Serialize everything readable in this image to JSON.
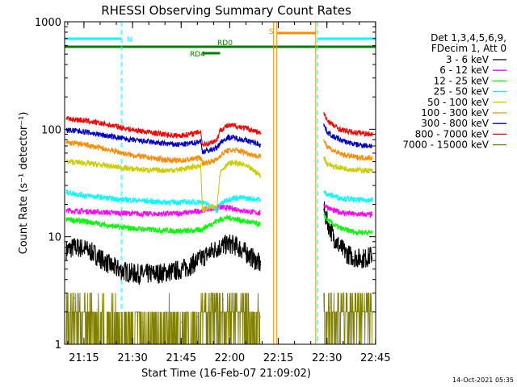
{
  "chart_data": {
    "type": "line",
    "title": "RHESSI Observing Summary Count Rates",
    "xlabel": "Start Time (16-Feb-07 21:09:02)",
    "ylabel": "Count Rate (s⁻¹ detector⁻¹)",
    "yscale": "log",
    "ylim": [
      1,
      1000
    ],
    "xlim_minutes": [
      0,
      96
    ],
    "x_ticks": [
      "21:15",
      "21:30",
      "21:45",
      "22:00",
      "22:15",
      "22:30",
      "22:45"
    ],
    "y_ticks": [
      "1",
      "10",
      "100",
      "1000"
    ],
    "grid": false,
    "legend_position": "right",
    "legend_header": [
      "Det 1,3,4,5,6,9,",
      "FDecim 1, Att 0"
    ],
    "timestamp": "14-Oct-2021 05:35",
    "data_gaps": [
      [
        60.5,
        63
      ],
      [
        75.5,
        80
      ]
    ],
    "flag_bars": [
      {
        "label": "N",
        "color": "#00ffff",
        "row": 1,
        "segments": [
          [
            0,
            17.5
          ],
          [
            78,
            96
          ]
        ]
      },
      {
        "label": "S",
        "color": "#ff8c00",
        "row": 0,
        "segments": [
          [
            65.5,
            77.5
          ]
        ]
      },
      {
        "label": "RD0",
        "color": "#008000",
        "row": 2,
        "segments": [
          [
            0,
            96
          ]
        ]
      },
      {
        "label": "RD4",
        "color": "#008000",
        "row": 3,
        "segments": [
          [
            42.5,
            48
          ]
        ]
      }
    ],
    "vertical_markers": [
      {
        "color": "#00ffff",
        "style": "dashed",
        "x": [
          0,
          17.5,
          78,
          96
        ]
      },
      {
        "color": "#ff8c00",
        "style": "solid",
        "x": [
          64.5,
          65.5,
          77.5
        ]
      }
    ],
    "series": [
      {
        "name": "3 - 6 keV",
        "color": "#000000",
        "points": [
          [
            0.5,
            7.5
          ],
          [
            3,
            8
          ],
          [
            6,
            7.8
          ],
          [
            9,
            7
          ],
          [
            12,
            6
          ],
          [
            15,
            5.2
          ],
          [
            18,
            4.8
          ],
          [
            22,
            4.5
          ],
          [
            26,
            4.5
          ],
          [
            30,
            4.6
          ],
          [
            34,
            4.8
          ],
          [
            38,
            5.2
          ],
          [
            41,
            6
          ],
          [
            43,
            6.5
          ],
          [
            45,
            7.2
          ],
          [
            47,
            7.8
          ],
          [
            49,
            8.3
          ],
          [
            51,
            8.6
          ],
          [
            53,
            8.2
          ],
          [
            55,
            7.5
          ],
          [
            57,
            6.7
          ],
          [
            59,
            6
          ],
          [
            60.5,
            5.5
          ],
          [
            80,
            18
          ],
          [
            81,
            14
          ],
          [
            83,
            10
          ],
          [
            85,
            8
          ],
          [
            87,
            7
          ],
          [
            89,
            6.5
          ],
          [
            91,
            6.3
          ],
          [
            93,
            6.3
          ],
          [
            95,
            6.8
          ]
        ]
      },
      {
        "name": "6 - 12 keV",
        "color": "#ff00ff",
        "points": [
          [
            0.5,
            17.5
          ],
          [
            5,
            17.3
          ],
          [
            10,
            17
          ],
          [
            15,
            16.7
          ],
          [
            20,
            16.5
          ],
          [
            25,
            16.3
          ],
          [
            30,
            16.3
          ],
          [
            35,
            16.5
          ],
          [
            40,
            17
          ],
          [
            42,
            17.5
          ],
          [
            44,
            18
          ],
          [
            46,
            18.5
          ],
          [
            48,
            18.8
          ],
          [
            50,
            18.6
          ],
          [
            52,
            18.3
          ],
          [
            55,
            17.5
          ],
          [
            58,
            17
          ],
          [
            60.5,
            16.5
          ],
          [
            80,
            20
          ],
          [
            81,
            19
          ],
          [
            83,
            17.5
          ],
          [
            85,
            17
          ],
          [
            87,
            16.5
          ],
          [
            90,
            16.2
          ],
          [
            95,
            16
          ]
        ]
      },
      {
        "name": "12 - 25 keV",
        "color": "#00ff00",
        "points": [
          [
            0.5,
            14.5
          ],
          [
            5,
            14
          ],
          [
            10,
            13.3
          ],
          [
            15,
            12.5
          ],
          [
            20,
            12
          ],
          [
            25,
            11.7
          ],
          [
            30,
            11.5
          ],
          [
            35,
            11.3
          ],
          [
            40,
            11.4
          ],
          [
            42,
            11.6
          ],
          [
            44,
            12.5
          ],
          [
            46,
            13.5
          ],
          [
            48,
            14.5
          ],
          [
            50,
            15
          ],
          [
            52,
            14.8
          ],
          [
            55,
            14
          ],
          [
            58,
            13.5
          ],
          [
            60.5,
            13
          ],
          [
            80,
            16
          ],
          [
            81,
            14.5
          ],
          [
            83,
            13
          ],
          [
            85,
            12
          ],
          [
            87,
            11.5
          ],
          [
            90,
            11
          ],
          [
            95,
            11
          ]
        ]
      },
      {
        "name": "25 - 50 keV",
        "color": "#00ffff",
        "points": [
          [
            0.5,
            26
          ],
          [
            5,
            24.5
          ],
          [
            10,
            23.5
          ],
          [
            15,
            22.5
          ],
          [
            20,
            22
          ],
          [
            25,
            21.5
          ],
          [
            30,
            21
          ],
          [
            35,
            21
          ],
          [
            40,
            21
          ],
          [
            42,
            21.2
          ],
          [
            44,
            20
          ],
          [
            46,
            19
          ],
          [
            47,
            17
          ],
          [
            48,
            20
          ],
          [
            50,
            22
          ],
          [
            52,
            23
          ],
          [
            55,
            23
          ],
          [
            58,
            22.5
          ],
          [
            60.5,
            22
          ],
          [
            80,
            26
          ],
          [
            81,
            25
          ],
          [
            83,
            24
          ],
          [
            85,
            23
          ],
          [
            87,
            22.5
          ],
          [
            90,
            22
          ],
          [
            95,
            22
          ]
        ]
      },
      {
        "name": "50 - 100 keV",
        "color": "#cccc00",
        "points": [
          [
            0.5,
            50
          ],
          [
            5,
            49
          ],
          [
            10,
            47
          ],
          [
            15,
            45
          ],
          [
            20,
            43
          ],
          [
            25,
            42
          ],
          [
            30,
            41.5
          ],
          [
            35,
            42
          ],
          [
            38,
            43.5
          ],
          [
            41,
            45.5
          ],
          [
            42,
            46
          ],
          [
            42.5,
            18
          ],
          [
            45,
            18.5
          ],
          [
            47,
            19
          ],
          [
            48,
            40
          ],
          [
            50,
            47
          ],
          [
            52,
            49
          ],
          [
            55,
            47
          ],
          [
            58,
            42
          ],
          [
            60.5,
            37
          ],
          [
            80,
            55
          ],
          [
            81,
            48
          ],
          [
            83,
            45
          ],
          [
            85,
            44
          ],
          [
            87,
            43
          ],
          [
            90,
            42
          ],
          [
            95,
            41
          ]
        ]
      },
      {
        "name": "100 - 300 keV",
        "color": "#ff8c00",
        "points": [
          [
            0.5,
            75
          ],
          [
            5,
            73
          ],
          [
            10,
            68
          ],
          [
            15,
            63
          ],
          [
            20,
            58
          ],
          [
            25,
            55
          ],
          [
            30,
            52.5
          ],
          [
            35,
            51
          ],
          [
            38,
            52
          ],
          [
            41,
            54
          ],
          [
            42,
            55
          ],
          [
            42.5,
            48
          ],
          [
            45,
            50
          ],
          [
            47,
            52
          ],
          [
            48,
            57
          ],
          [
            50,
            63
          ],
          [
            52,
            64
          ],
          [
            55,
            62
          ],
          [
            58,
            58
          ],
          [
            60.5,
            55
          ],
          [
            80,
            80
          ],
          [
            81,
            70
          ],
          [
            83,
            63
          ],
          [
            85,
            59
          ],
          [
            87,
            57
          ],
          [
            90,
            55
          ],
          [
            95,
            54
          ]
        ]
      },
      {
        "name": "300 - 800 keV",
        "color": "#0000cc",
        "points": [
          [
            0.5,
            98
          ],
          [
            5,
            96
          ],
          [
            10,
            90
          ],
          [
            15,
            85
          ],
          [
            20,
            80
          ],
          [
            25,
            77
          ],
          [
            30,
            74
          ],
          [
            35,
            72
          ],
          [
            38,
            73
          ],
          [
            41,
            76
          ],
          [
            42,
            78
          ],
          [
            42.5,
            62
          ],
          [
            45,
            64
          ],
          [
            47,
            67
          ],
          [
            48,
            75
          ],
          [
            50,
            83
          ],
          [
            52,
            84
          ],
          [
            55,
            80
          ],
          [
            58,
            76
          ],
          [
            60.5,
            72
          ],
          [
            80,
            110
          ],
          [
            81,
            95
          ],
          [
            83,
            85
          ],
          [
            85,
            80
          ],
          [
            87,
            76
          ],
          [
            90,
            72
          ],
          [
            95,
            70
          ]
        ]
      },
      {
        "name": "800 - 7000 keV",
        "color": "#ff0000",
        "points": [
          [
            0.5,
            125
          ],
          [
            5,
            122
          ],
          [
            10,
            115
          ],
          [
            15,
            108
          ],
          [
            20,
            100
          ],
          [
            25,
            95
          ],
          [
            30,
            90
          ],
          [
            35,
            87
          ],
          [
            38,
            89
          ],
          [
            41,
            93
          ],
          [
            42,
            96
          ],
          [
            42.5,
            72
          ],
          [
            45,
            75
          ],
          [
            47,
            80
          ],
          [
            48,
            98
          ],
          [
            50,
            107
          ],
          [
            52,
            108
          ],
          [
            55,
            104
          ],
          [
            58,
            98
          ],
          [
            60.5,
            92
          ],
          [
            80,
            140
          ],
          [
            81,
            122
          ],
          [
            83,
            108
          ],
          [
            85,
            100
          ],
          [
            87,
            96
          ],
          [
            90,
            93
          ],
          [
            95,
            90
          ]
        ]
      },
      {
        "name": "7000 - 15000 keV",
        "color": "#808000",
        "points": [
          [
            0.5,
            2.7
          ],
          [
            3,
            2.7
          ],
          [
            6,
            2.7
          ],
          [
            8,
            2
          ],
          [
            10,
            2.1
          ],
          [
            12,
            1.7
          ],
          [
            14,
            1.8
          ],
          [
            17,
            1.7
          ],
          [
            20,
            1.6
          ],
          [
            24,
            1.6
          ],
          [
            28,
            1.6
          ],
          [
            32,
            1.6
          ],
          [
            36,
            1.6
          ],
          [
            40,
            1.6
          ],
          [
            41,
            1.8
          ],
          [
            43,
            2.5
          ],
          [
            45,
            2.6
          ],
          [
            47,
            2.7
          ],
          [
            49,
            2.6
          ],
          [
            51,
            2.5
          ],
          [
            53,
            2.4
          ],
          [
            55,
            2.2
          ],
          [
            57,
            2
          ],
          [
            59,
            1.8
          ],
          [
            60.5,
            1.8
          ],
          [
            80,
            2.5
          ],
          [
            82,
            2.2
          ],
          [
            84,
            2
          ],
          [
            86,
            1.9
          ],
          [
            88,
            1.9
          ],
          [
            90,
            1.9
          ],
          [
            92,
            1.9
          ],
          [
            95,
            1.9
          ]
        ]
      }
    ]
  }
}
